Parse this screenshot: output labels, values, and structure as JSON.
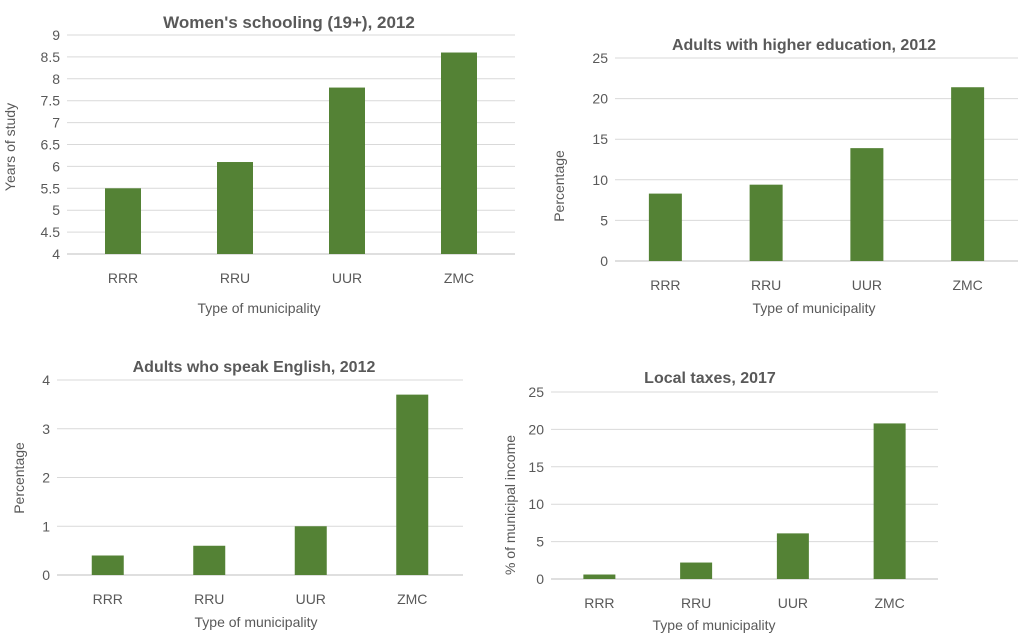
{
  "chart_data": [
    {
      "type": "bar",
      "title": "Women's schooling (19+), 2012",
      "categories": [
        "RRR",
        "RRU",
        "UUR",
        "ZMC"
      ],
      "values": [
        5.5,
        6.1,
        7.8,
        8.6
      ],
      "xlabel": "Type of municipality",
      "ylabel": "Years of study",
      "ylim": [
        4,
        9
      ],
      "yticks": [
        4,
        4.5,
        5,
        5.5,
        6,
        6.5,
        7,
        7.5,
        8,
        8.5,
        9
      ],
      "ytick_labels": [
        "4",
        "4.5",
        "5",
        "5.5",
        "6",
        "6.5",
        "7",
        "7.5",
        "8",
        "8.5",
        "9"
      ],
      "grid": true,
      "legend": "none",
      "bar_color": "#548235"
    },
    {
      "type": "bar",
      "title": "Adults with higher education, 2012",
      "categories": [
        "RRR",
        "RRU",
        "UUR",
        "ZMC"
      ],
      "values": [
        8.3,
        9.4,
        13.9,
        21.4
      ],
      "xlabel": "Type of municipality",
      "ylabel": "Percentage",
      "ylim": [
        0,
        25
      ],
      "yticks": [
        0,
        5,
        10,
        15,
        20,
        25
      ],
      "ytick_labels": [
        "0",
        "5",
        "10",
        "15",
        "20",
        "25"
      ],
      "grid": true,
      "legend": "none",
      "bar_color": "#548235"
    },
    {
      "type": "bar",
      "title": "Adults who speak English, 2012",
      "categories": [
        "RRR",
        "RRU",
        "UUR",
        "ZMC"
      ],
      "values": [
        0.4,
        0.6,
        1.0,
        3.7
      ],
      "xlabel": "Type of municipality",
      "ylabel": "Percentage",
      "ylim": [
        0,
        4
      ],
      "yticks": [
        0,
        1,
        2,
        3,
        4
      ],
      "ytick_labels": [
        "0",
        "1",
        "2",
        "3",
        "4"
      ],
      "grid": true,
      "legend": "none",
      "bar_color": "#548235"
    },
    {
      "type": "bar",
      "title": "Local taxes, 2017",
      "categories": [
        "RRR",
        "RRU",
        "UUR",
        "ZMC"
      ],
      "values": [
        0.6,
        2.2,
        6.1,
        20.8
      ],
      "xlabel": "Type of municipality",
      "ylabel": "% of municipal income",
      "ylim": [
        0,
        25
      ],
      "yticks": [
        0,
        5,
        10,
        15,
        20,
        25
      ],
      "ytick_labels": [
        "0",
        "5",
        "10",
        "15",
        "20",
        "25"
      ],
      "grid": true,
      "legend": "none",
      "bar_color": "#548235"
    }
  ]
}
